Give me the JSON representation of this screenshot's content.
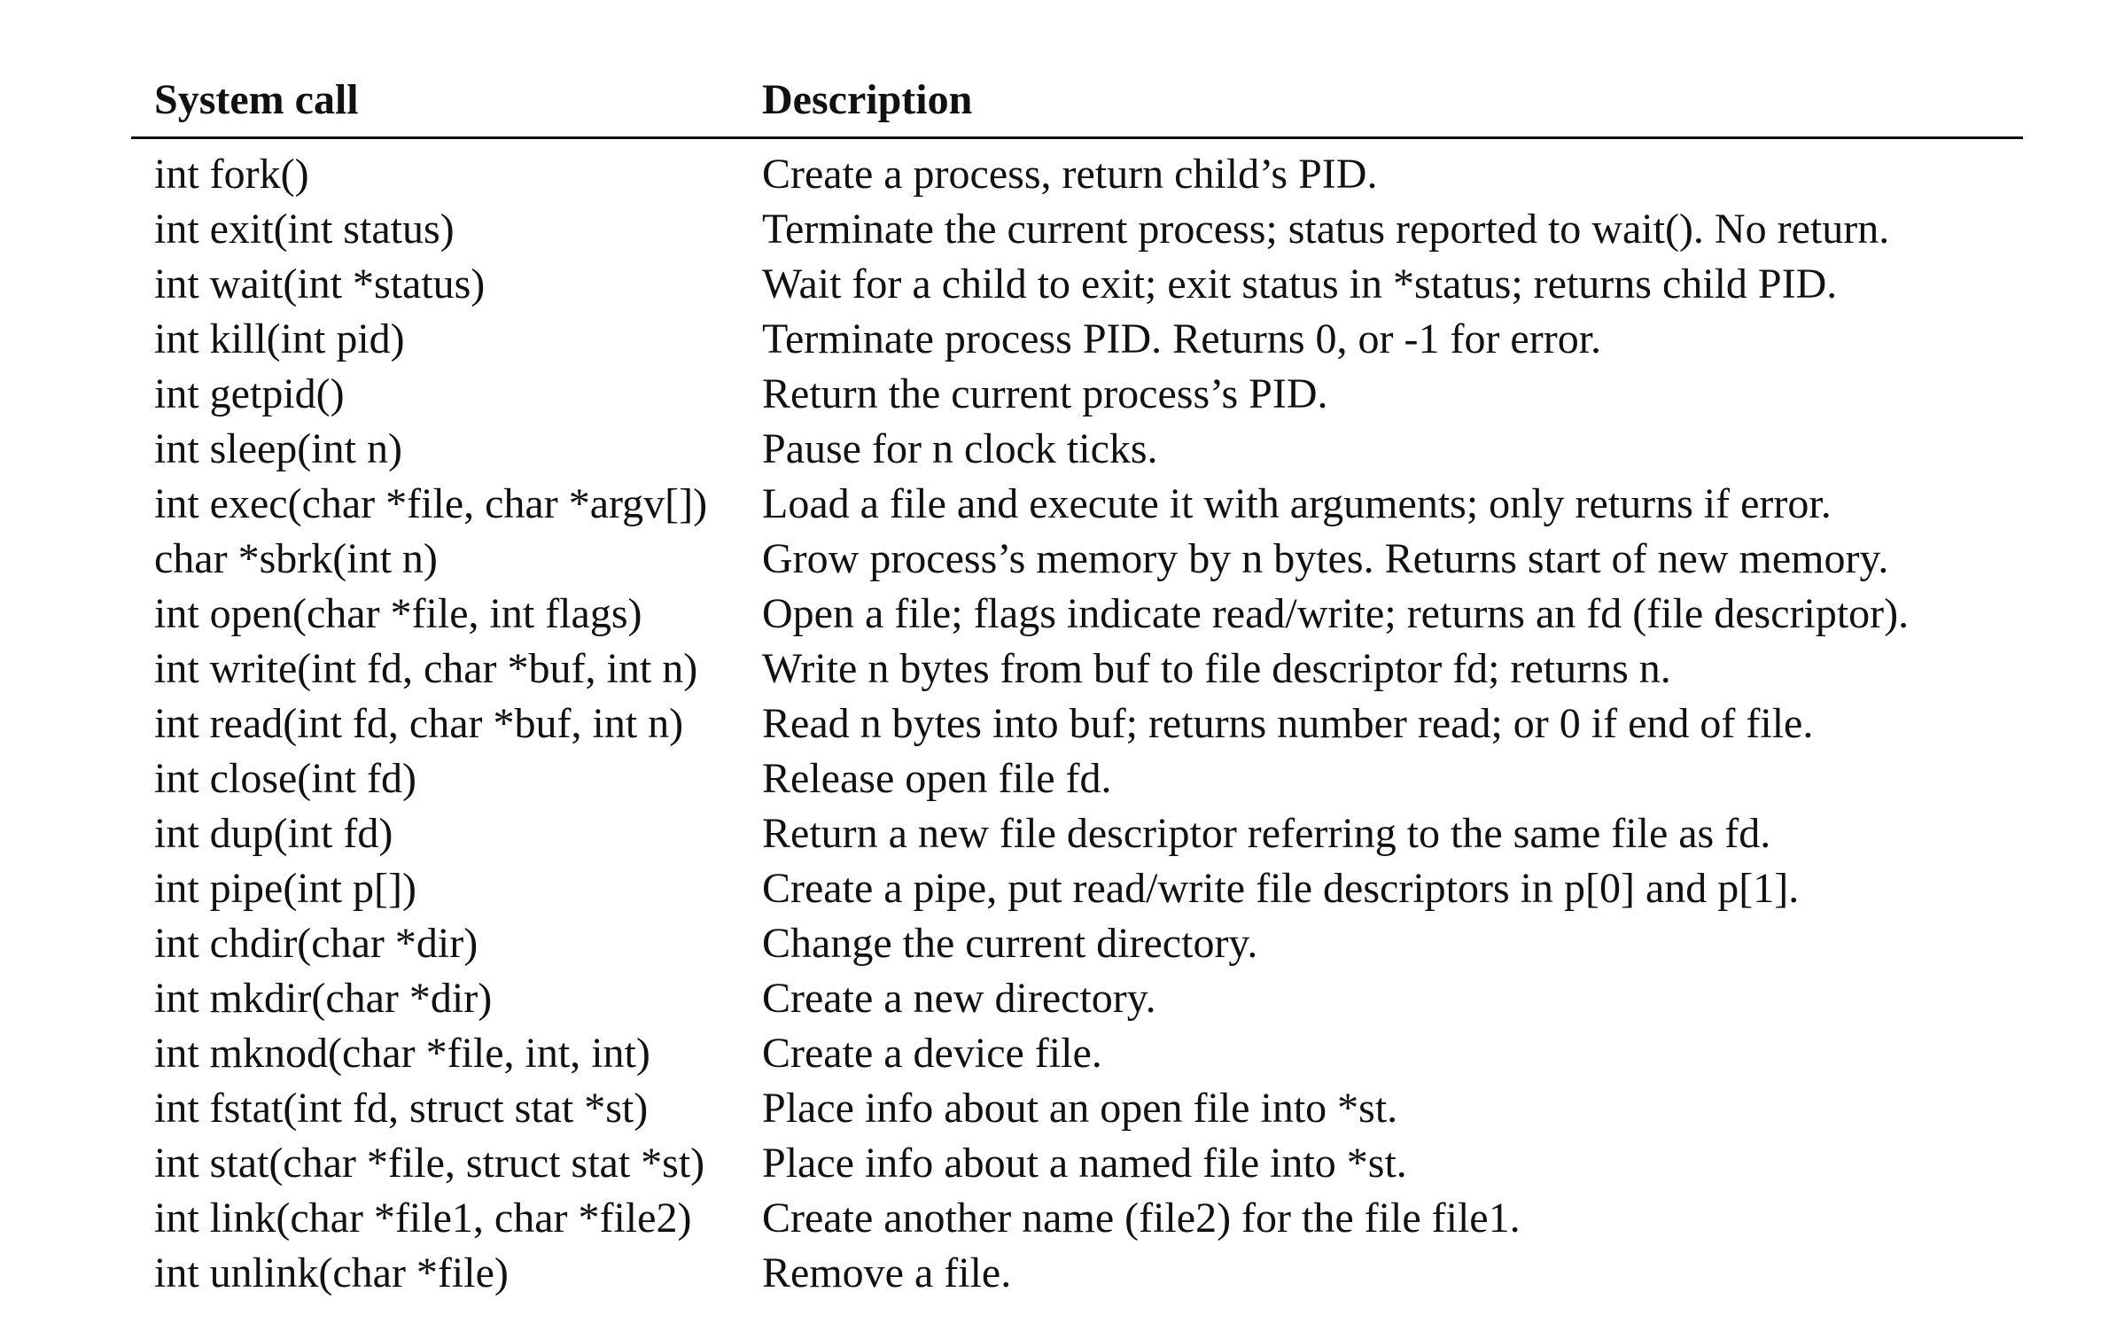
{
  "header": {
    "call": "System call",
    "description": "Description"
  },
  "rows": [
    {
      "call": "int fork()",
      "description": "Create a process, return child’s PID."
    },
    {
      "call": "int exit(int status)",
      "description": "Terminate the current process; status reported to wait(). No return."
    },
    {
      "call": "int wait(int *status)",
      "description": "Wait for a child to exit; exit status in *status; returns child PID."
    },
    {
      "call": "int kill(int pid)",
      "description": "Terminate process PID. Returns 0, or -1 for error."
    },
    {
      "call": "int getpid()",
      "description": "Return the current process’s PID."
    },
    {
      "call": "int sleep(int n)",
      "description": "Pause for n clock ticks."
    },
    {
      "call": "int exec(char *file, char *argv[])",
      "description": "Load a file and execute it with arguments; only returns if error."
    },
    {
      "call": "char *sbrk(int n)",
      "description": "Grow process’s memory by n bytes. Returns start of new memory."
    },
    {
      "call": "int open(char *file, int flags)",
      "description": "Open a file; flags indicate read/write; returns an fd (file descriptor)."
    },
    {
      "call": "int write(int fd, char *buf, int n)",
      "description": "Write n bytes from buf to file descriptor fd; returns n."
    },
    {
      "call": "int read(int fd, char *buf, int n)",
      "description": "Read n bytes into buf; returns number read; or 0 if end of file."
    },
    {
      "call": "int close(int fd)",
      "description": "Release open file fd."
    },
    {
      "call": "int dup(int fd)",
      "description": "Return a new file descriptor referring to the same file as fd."
    },
    {
      "call": "int pipe(int p[])",
      "description": "Create a pipe, put read/write file descriptors in p[0] and p[1]."
    },
    {
      "call": "int chdir(char *dir)",
      "description": "Change the current directory."
    },
    {
      "call": "int mkdir(char *dir)",
      "description": "Create a new directory."
    },
    {
      "call": "int mknod(char *file, int, int)",
      "description": "Create a device file."
    },
    {
      "call": "int fstat(int fd, struct stat *st)",
      "description": "Place info about an open file into *st."
    },
    {
      "call": "int stat(char *file, struct stat *st)",
      "description": "Place info about a named file into *st."
    },
    {
      "call": "int link(char *file1, char *file2)",
      "description": "Create another name (file2) for the file file1."
    },
    {
      "call": "int unlink(char *file)",
      "description": "Remove a file."
    }
  ]
}
